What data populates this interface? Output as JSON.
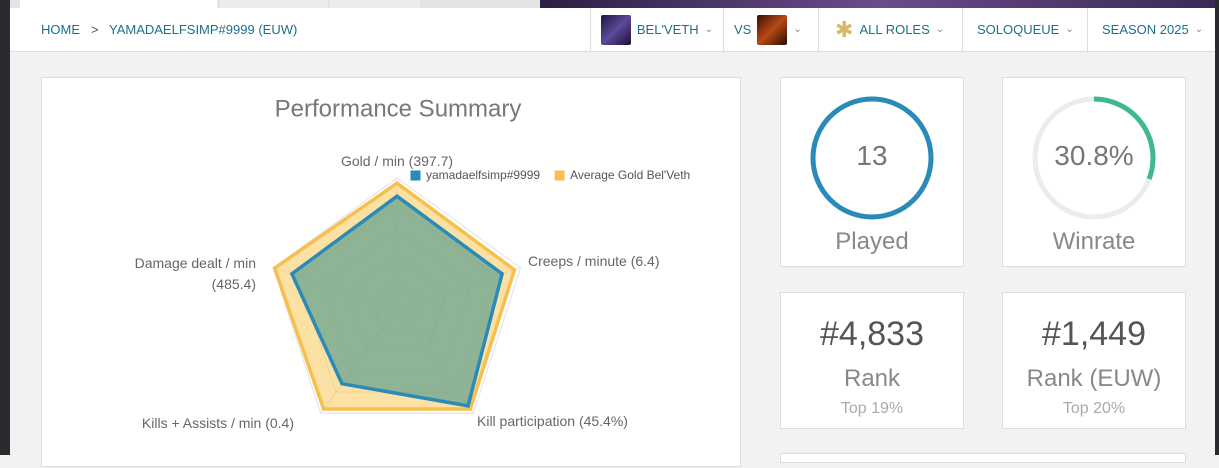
{
  "breadcrumb": {
    "home": "HOME",
    "separator": ">",
    "player": "YAMADAELFSIMP#9999 (EUW)"
  },
  "filters": {
    "champion": "BEL'VETH",
    "vs": "VS",
    "role": "ALL ROLES",
    "queue": "SOLOQUEUE",
    "season": "SEASON 2025"
  },
  "chart_data": {
    "type": "radar",
    "title": "Performance Summary",
    "axes": [
      "Gold / min (397.7)",
      "Creeps / minute (6.4)",
      "Kill participation (45.4%)",
      "Kills + Assists / min (0.4)",
      "Damage dealt / min (485.4)"
    ],
    "rlim": [
      0,
      1
    ],
    "series": [
      {
        "name": "yamadaelfsimp#9999",
        "color": "#2a8ab8",
        "values": [
          0.86,
          0.85,
          0.93,
          0.72,
          0.85
        ]
      },
      {
        "name": "Average Gold Bel'Veth",
        "color": "#f6c04e",
        "values": [
          0.96,
          0.95,
          0.96,
          0.96,
          0.99
        ]
      }
    ]
  },
  "cards": [
    {
      "value": "13",
      "label": "Played"
    },
    {
      "value": {
        "value": 30.8,
        "label": "30.8%"
      },
      "label": "Winrate"
    },
    {
      "value": "#4,833",
      "label": "Rank",
      "sub": "Top 19%"
    },
    {
      "value": "#1,449",
      "label": "Rank (EUW)",
      "sub": "Top 20%"
    }
  ]
}
